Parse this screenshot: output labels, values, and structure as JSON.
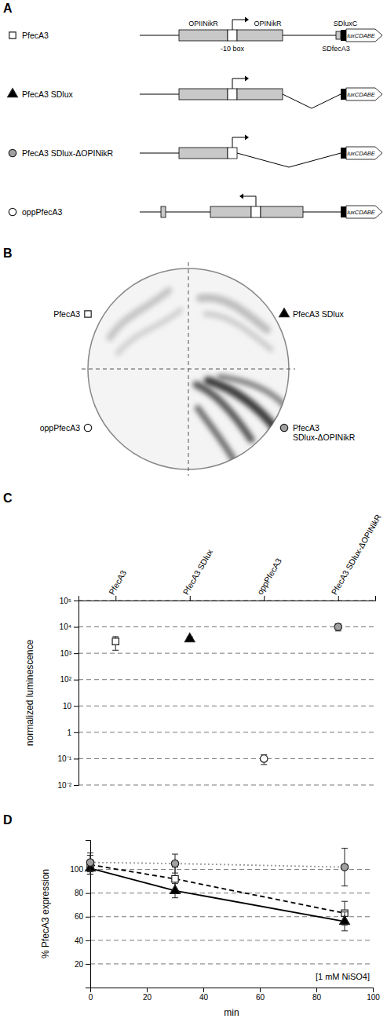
{
  "panel_a": {
    "letter": "A",
    "constructs": [
      {
        "label": "PfecA3",
        "marker": "square",
        "color": "#ffffff"
      },
      {
        "label": "PfecA3 SDlux",
        "marker": "triangle",
        "color": "#000000"
      },
      {
        "label": "PfecA3 SDlux-ΔOPINikR",
        "marker": "circle",
        "color": "#a0a0a0"
      },
      {
        "label": "oppPfecA3",
        "marker": "circle",
        "color": "#ffffff"
      }
    ],
    "elements": {
      "opii": "OPIINikR",
      "opi": "OPINikR",
      "minus10": "-10 box",
      "sd_fec": "SDfecA3",
      "sd_lux": "SDluxC",
      "gene": "luxCDABE"
    }
  },
  "panel_b": {
    "letter": "B"
  },
  "chart_data": [
    {
      "type": "scatter",
      "panel": "C",
      "categories": [
        "PfecA3",
        "PfecA3 SDlux",
        "oppPfecA3",
        "PfecA3 SDlux-ΔOPINikR"
      ],
      "ylabel": "normalized luminescence",
      "log": "y",
      "grid": true,
      "ylim": [
        0.01,
        100000
      ],
      "yticks": [
        {
          "value": 0.01,
          "label": "10⁻²"
        },
        {
          "value": 0.1,
          "label": "10⁻¹"
        },
        1,
        10,
        {
          "value": 100,
          "label": "10²"
        },
        {
          "value": 1000,
          "label": "10³"
        },
        {
          "value": 10000,
          "label": "10⁴"
        },
        {
          "value": 100000,
          "label": "10⁵"
        }
      ],
      "series": [
        {
          "marker": "square",
          "color": "#ffffff",
          "values": [
            2800,
            null,
            null,
            null
          ],
          "errors": [
            1500,
            null,
            null,
            null
          ]
        },
        {
          "marker": "triangle",
          "color": "#000000",
          "values": [
            null,
            3500,
            null,
            null
          ],
          "errors": [
            null,
            700,
            null,
            null
          ]
        },
        {
          "marker": "circle",
          "color": "#ffffff",
          "values": [
            null,
            null,
            0.1,
            null
          ],
          "errors": [
            null,
            null,
            0.04,
            null
          ]
        },
        {
          "marker": "circle",
          "color": "#a0a0a0",
          "values": [
            null,
            null,
            null,
            10000
          ],
          "errors": [
            null,
            null,
            null,
            3000
          ]
        }
      ]
    },
    {
      "type": "line",
      "panel": "D",
      "x": [
        0,
        30,
        90
      ],
      "xlim": [
        0,
        100
      ],
      "xticks": [
        0,
        20,
        40,
        60,
        80,
        100
      ],
      "ylim": [
        0,
        125
      ],
      "yticks": [
        20,
        40,
        60,
        80,
        100
      ],
      "xlabel": "min",
      "ylabel": "% PfecA3 expression",
      "annotation": "[1 mM NiSO4]",
      "grid": true,
      "series": [
        {
          "marker": "square",
          "color": "#000000",
          "line_style": "dashed",
          "values": [
            104,
            92,
            63
          ],
          "errors": [
            8,
            10,
            10
          ]
        },
        {
          "marker": "triangle",
          "color": "#000000",
          "line_style": "solid",
          "values": [
            101,
            82,
            56
          ],
          "errors": [
            5,
            6,
            8
          ]
        },
        {
          "marker": "circle",
          "color": "#a0a0a0",
          "line_style": "dotted",
          "values": [
            106,
            105,
            102
          ],
          "errors": [
            8,
            8,
            16
          ]
        }
      ]
    }
  ]
}
